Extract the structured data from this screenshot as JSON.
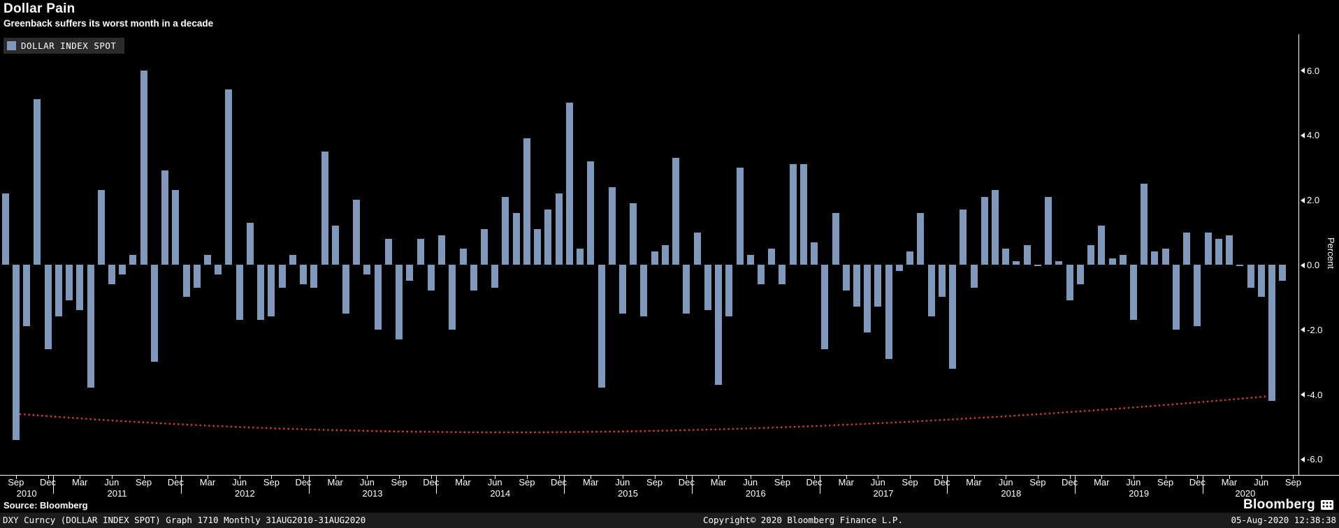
{
  "header": {
    "title": "Dollar Pain",
    "subtitle": "Greenback suffers its worst month in a decade"
  },
  "legend": {
    "label": "DOLLAR INDEX SPOT"
  },
  "axis": {
    "y_title": "Percent",
    "y_ticks": [
      {
        "label": "6.0",
        "v": 6
      },
      {
        "label": "4.0",
        "v": 4
      },
      {
        "label": "2.0",
        "v": 2
      },
      {
        "label": "0.0",
        "v": 0
      },
      {
        "label": "-2.0",
        "v": -2
      },
      {
        "label": "-4.0",
        "v": -4
      },
      {
        "label": "-6.0",
        "v": -6
      }
    ]
  },
  "colors": {
    "bar": "#7f99bd",
    "annotation": "#ee3a2c",
    "background": "#000000",
    "status_bg": "#1c1c1c",
    "legend_bg": "#2b2b2b",
    "text": "#ffffff"
  },
  "chart_data": {
    "type": "bar",
    "title": "Dollar Pain",
    "series_name": "DOLLAR INDEX SPOT",
    "ylabel": "Percent",
    "ylim": [
      -6.5,
      7.1
    ],
    "period": "Monthly 31AUG2010-31AUG2020",
    "months": [
      "2010-08",
      "2010-09",
      "2010-10",
      "2010-11",
      "2010-12",
      "2011-01",
      "2011-02",
      "2011-03",
      "2011-04",
      "2011-05",
      "2011-06",
      "2011-07",
      "2011-08",
      "2011-09",
      "2011-10",
      "2011-11",
      "2011-12",
      "2012-01",
      "2012-02",
      "2012-03",
      "2012-04",
      "2012-05",
      "2012-06",
      "2012-07",
      "2012-08",
      "2012-09",
      "2012-10",
      "2012-11",
      "2012-12",
      "2013-01",
      "2013-02",
      "2013-03",
      "2013-04",
      "2013-05",
      "2013-06",
      "2013-07",
      "2013-08",
      "2013-09",
      "2013-10",
      "2013-11",
      "2013-12",
      "2014-01",
      "2014-02",
      "2014-03",
      "2014-04",
      "2014-05",
      "2014-06",
      "2014-07",
      "2014-08",
      "2014-09",
      "2014-10",
      "2014-11",
      "2014-12",
      "2015-01",
      "2015-02",
      "2015-03",
      "2015-04",
      "2015-05",
      "2015-06",
      "2015-07",
      "2015-08",
      "2015-09",
      "2015-10",
      "2015-11",
      "2015-12",
      "2016-01",
      "2016-02",
      "2016-03",
      "2016-04",
      "2016-05",
      "2016-06",
      "2016-07",
      "2016-08",
      "2016-09",
      "2016-10",
      "2016-11",
      "2016-12",
      "2017-01",
      "2017-02",
      "2017-03",
      "2017-04",
      "2017-05",
      "2017-06",
      "2017-07",
      "2017-08",
      "2017-09",
      "2017-10",
      "2017-11",
      "2017-12",
      "2018-01",
      "2018-02",
      "2018-03",
      "2018-04",
      "2018-05",
      "2018-06",
      "2018-07",
      "2018-08",
      "2018-09",
      "2018-10",
      "2018-11",
      "2018-12",
      "2019-01",
      "2019-02",
      "2019-03",
      "2019-04",
      "2019-05",
      "2019-06",
      "2019-07",
      "2019-08",
      "2019-09",
      "2019-10",
      "2019-11",
      "2019-12",
      "2020-01",
      "2020-02",
      "2020-03",
      "2020-04",
      "2020-05",
      "2020-06",
      "2020-07",
      "2020-08"
    ],
    "values": [
      2.2,
      -5.4,
      -1.9,
      5.1,
      -2.6,
      -1.6,
      -1.1,
      -1.4,
      -3.8,
      2.3,
      -0.6,
      -0.3,
      0.3,
      6.0,
      -3.0,
      2.9,
      2.3,
      -1.0,
      -0.7,
      0.3,
      -0.3,
      5.4,
      -1.7,
      1.3,
      -1.7,
      -1.6,
      -0.7,
      0.3,
      -0.6,
      -0.7,
      3.5,
      1.2,
      -1.5,
      2.0,
      -0.3,
      -2.0,
      0.8,
      -2.3,
      -0.5,
      0.8,
      -0.8,
      0.9,
      -2.0,
      0.5,
      -0.8,
      1.1,
      -0.7,
      2.1,
      1.6,
      3.9,
      1.1,
      1.7,
      2.2,
      5.0,
      0.5,
      3.2,
      -3.8,
      2.4,
      -1.5,
      1.9,
      -1.6,
      0.4,
      0.6,
      3.3,
      -1.5,
      1.0,
      -1.4,
      -3.7,
      -1.6,
      3.0,
      0.3,
      -0.6,
      0.5,
      -0.6,
      3.1,
      3.1,
      0.7,
      -2.6,
      1.6,
      -0.8,
      -1.3,
      -2.1,
      -1.3,
      -2.9,
      -0.2,
      0.4,
      1.6,
      -1.6,
      -1.0,
      -3.2,
      1.7,
      -0.7,
      2.1,
      2.3,
      0.5,
      0.1,
      0.6,
      0.0,
      2.1,
      0.1,
      -1.1,
      -0.6,
      0.6,
      1.2,
      0.2,
      0.3,
      -1.7,
      2.5,
      0.4,
      0.5,
      -2.0,
      1.0,
      -1.9,
      1.0,
      0.8,
      0.9,
      0.0,
      -0.7,
      -1.0,
      -4.2,
      -0.5
    ],
    "x_ticks": [
      [
        1,
        "Sep"
      ],
      [
        4,
        "Dec"
      ],
      [
        7,
        "Mar"
      ],
      [
        10,
        "Jun"
      ],
      [
        13,
        "Sep"
      ],
      [
        16,
        "Dec"
      ],
      [
        19,
        "Mar"
      ],
      [
        22,
        "Jun"
      ],
      [
        25,
        "Sep"
      ],
      [
        28,
        "Dec"
      ],
      [
        31,
        "Mar"
      ],
      [
        34,
        "Jun"
      ],
      [
        37,
        "Sep"
      ],
      [
        40,
        "Dec"
      ],
      [
        43,
        "Mar"
      ],
      [
        46,
        "Jun"
      ],
      [
        49,
        "Sep"
      ],
      [
        52,
        "Dec"
      ],
      [
        55,
        "Mar"
      ],
      [
        58,
        "Jun"
      ],
      [
        61,
        "Sep"
      ],
      [
        64,
        "Dec"
      ],
      [
        67,
        "Mar"
      ],
      [
        70,
        "Jun"
      ],
      [
        73,
        "Sep"
      ],
      [
        76,
        "Dec"
      ],
      [
        79,
        "Mar"
      ],
      [
        82,
        "Jun"
      ],
      [
        85,
        "Sep"
      ],
      [
        88,
        "Dec"
      ],
      [
        91,
        "Mar"
      ],
      [
        94,
        "Jun"
      ],
      [
        97,
        "Sep"
      ],
      [
        100,
        "Dec"
      ],
      [
        103,
        "Mar"
      ],
      [
        106,
        "Jun"
      ],
      [
        109,
        "Sep"
      ],
      [
        112,
        "Dec"
      ],
      [
        115,
        "Mar"
      ],
      [
        118,
        "Jun"
      ],
      [
        121,
        "Sep"
      ]
    ],
    "years": [
      [
        2,
        "2010"
      ],
      [
        10.5,
        "2011"
      ],
      [
        22.5,
        "2012"
      ],
      [
        34.5,
        "2013"
      ],
      [
        46.5,
        "2014"
      ],
      [
        58.5,
        "2015"
      ],
      [
        70.5,
        "2016"
      ],
      [
        82.5,
        "2017"
      ],
      [
        94.5,
        "2018"
      ],
      [
        106.5,
        "2019"
      ],
      [
        116.5,
        "2020"
      ]
    ],
    "year_separators": [
      5,
      17,
      29,
      41,
      53,
      65,
      77,
      89,
      101,
      113
    ],
    "trend_line": {
      "style": "dotted",
      "color": "#ee3a2c",
      "points": [
        {
          "i": 1,
          "v": -4.6
        },
        {
          "i": 57,
          "v": -5.15
        },
        {
          "i": 119,
          "v": -4.05
        }
      ]
    }
  },
  "footer": {
    "source": "Source: Bloomberg",
    "brand": "Bloomberg",
    "status_left": "DXY Curncy (DOLLAR INDEX SPOT) Graph 1710  Monthly 31AUG2010-31AUG2020",
    "status_center": "Copyright© 2020 Bloomberg Finance L.P.",
    "status_right": "05-Aug-2020 12:38:38"
  }
}
